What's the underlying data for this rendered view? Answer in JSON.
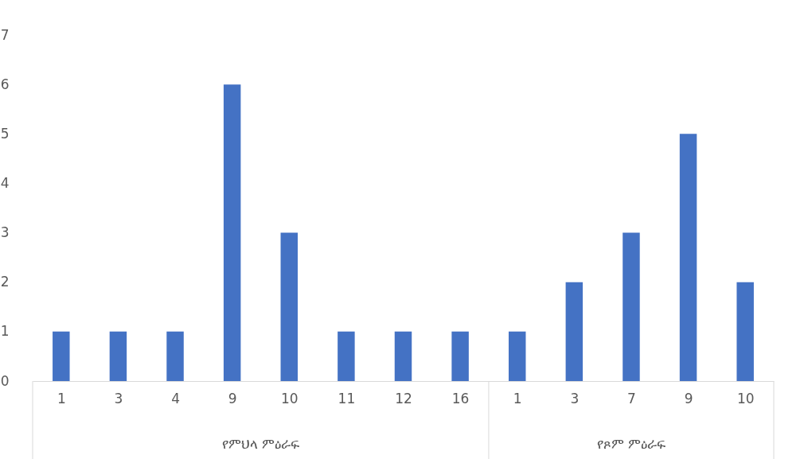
{
  "chart_data": {
    "type": "bar",
    "categories": [
      "1",
      "3",
      "4",
      "9",
      "10",
      "11",
      "12",
      "16",
      "1",
      "3",
      "7",
      "9",
      "10"
    ],
    "values": [
      1,
      1,
      1,
      6,
      3,
      1,
      1,
      1,
      1,
      2,
      3,
      5,
      2
    ],
    "color": "#4472c4",
    "ylim": [
      0,
      7
    ],
    "yticks": [
      0,
      1,
      2,
      3,
      4,
      5,
      6,
      7
    ],
    "grid": false,
    "annotations": [
      "የምህላ ምዕራፍ",
      "የጾም ምዕራፍ"
    ]
  }
}
